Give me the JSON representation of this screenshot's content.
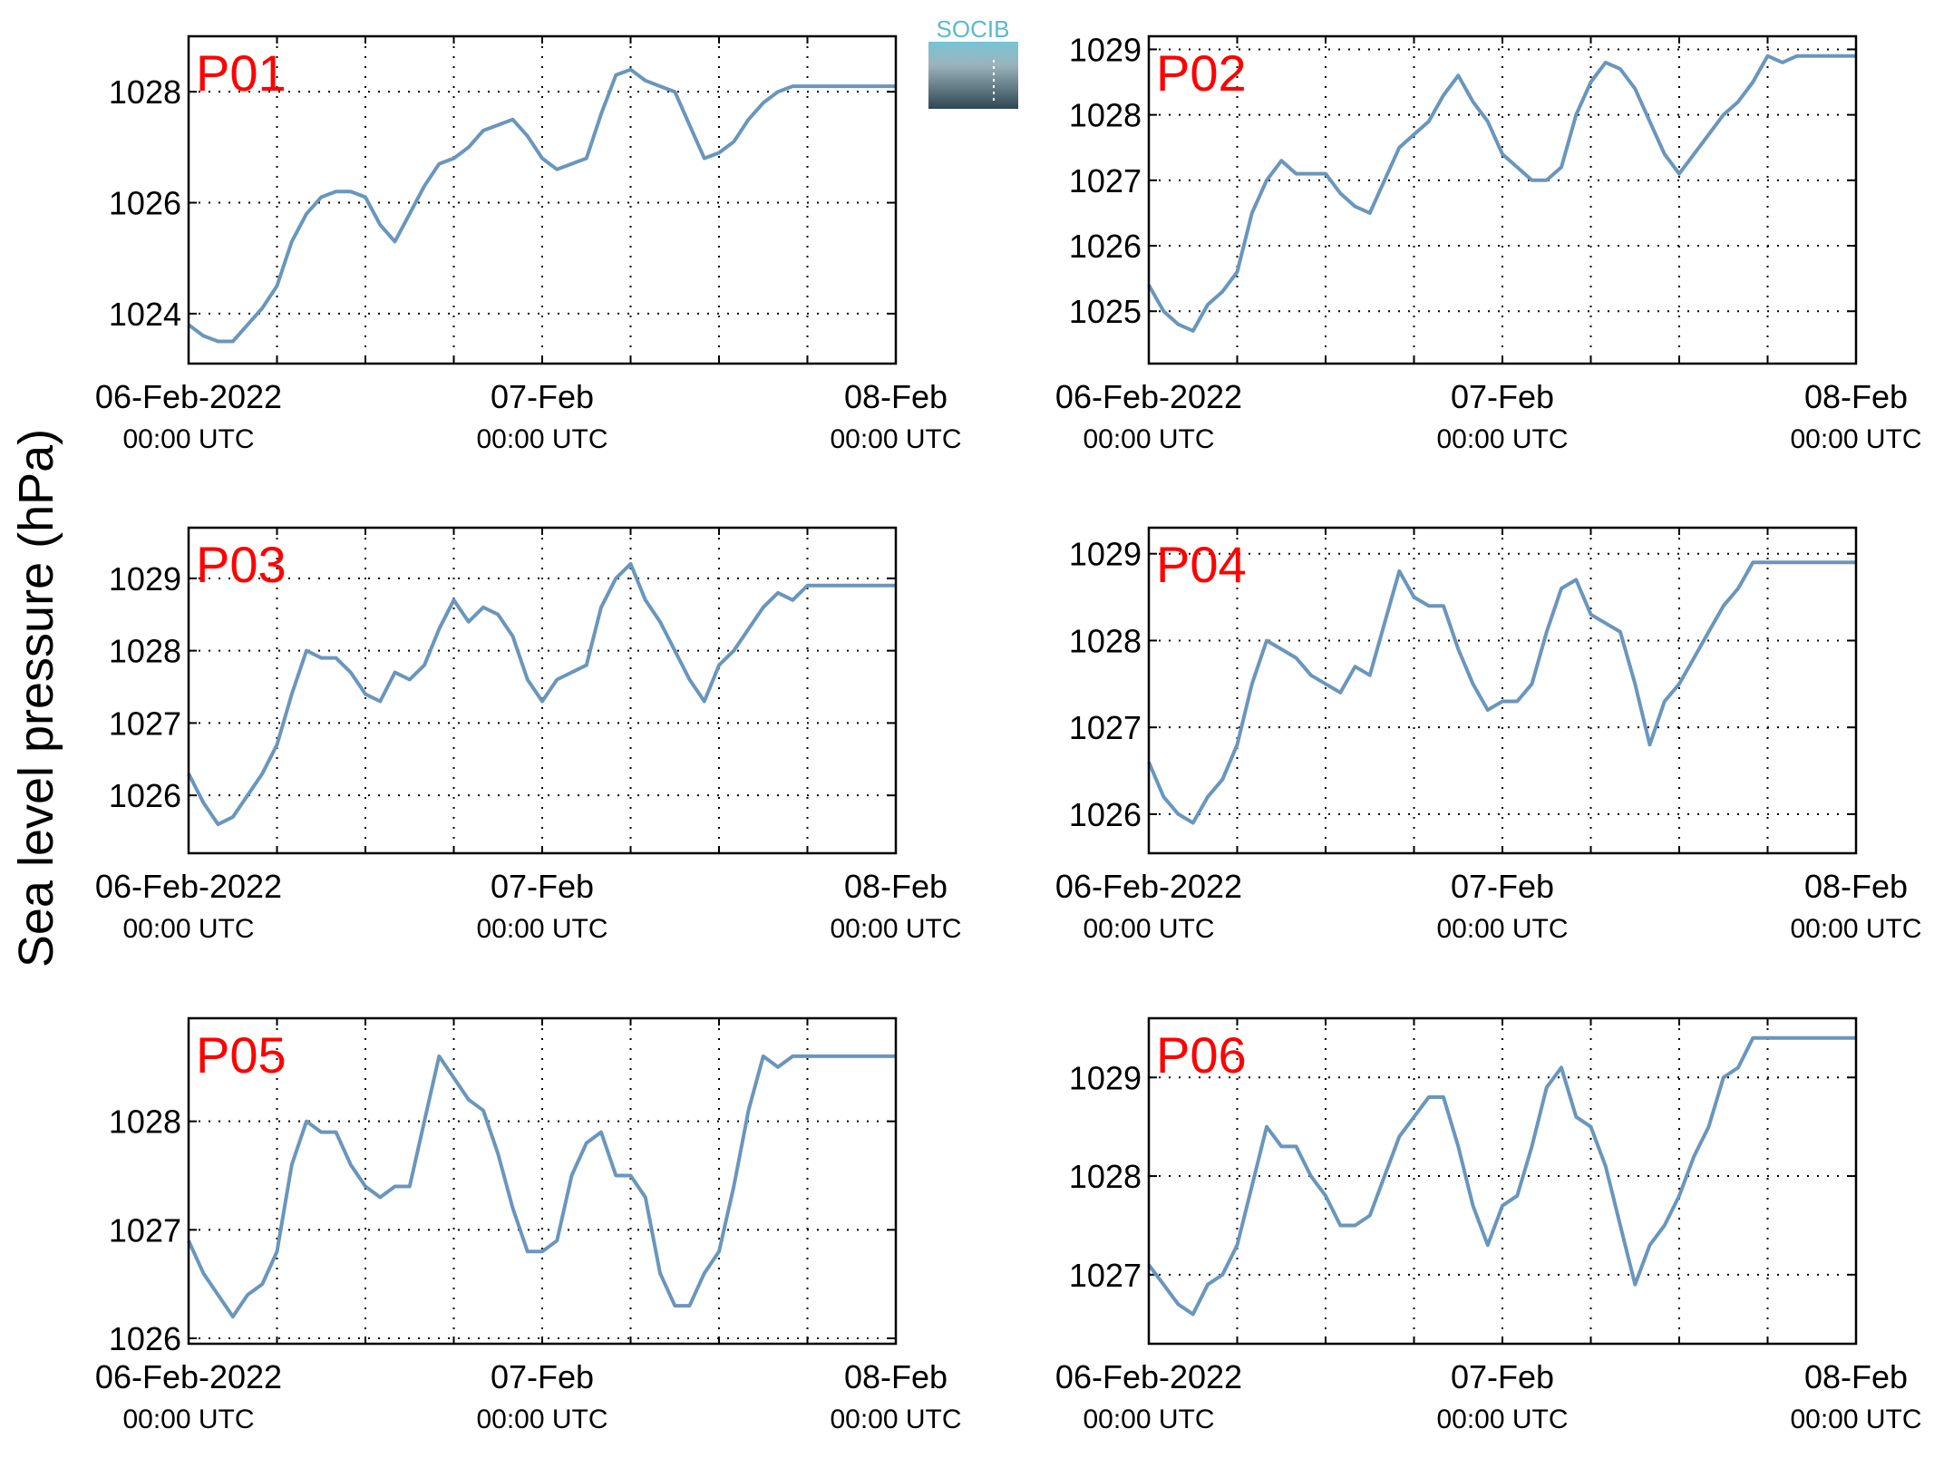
{
  "figure": {
    "ylabel": "Sea level pressure (hPa)",
    "logo_text": "SOCIB",
    "line_color": "#6a96bc",
    "tag_color": "#ff0000"
  },
  "chart_data": [
    {
      "type": "line",
      "panel": "P01",
      "x_ticks": [
        "06-Feb-2022",
        "07-Feb",
        "08-Feb"
      ],
      "x_tick_sub": [
        "00:00 UTC",
        "00:00 UTC",
        "00:00 UTC"
      ],
      "xlim": [
        0,
        48
      ],
      "ylim": [
        1023.1,
        1029.0
      ],
      "y_ticks": [
        1024,
        1026,
        1028
      ],
      "grid": true,
      "x": [
        0,
        1,
        2,
        3,
        4,
        5,
        6,
        7,
        8,
        9,
        10,
        11,
        12,
        13,
        14,
        15,
        16,
        17,
        18,
        19,
        20,
        21,
        22,
        23,
        24,
        25,
        26,
        27,
        28,
        29,
        30,
        31,
        32,
        33,
        34,
        35,
        36,
        37,
        38,
        39,
        40,
        41,
        42,
        43,
        44,
        45,
        46,
        47,
        48
      ],
      "y": [
        1023.8,
        1023.6,
        1023.5,
        1023.5,
        1023.8,
        1024.1,
        1024.5,
        1025.3,
        1025.8,
        1026.1,
        1026.2,
        1026.2,
        1026.1,
        1025.6,
        1025.3,
        1025.8,
        1026.3,
        1026.7,
        1026.8,
        1027.0,
        1027.3,
        1027.4,
        1027.5,
        1027.2,
        1026.8,
        1026.6,
        1026.7,
        1026.8,
        1027.6,
        1028.3,
        1028.4,
        1028.2,
        1028.1,
        1028.0,
        1027.4,
        1026.8,
        1026.9,
        1027.1,
        1027.5,
        1027.8,
        1028.0,
        1028.1,
        1028.1,
        1028.1,
        1028.1,
        1028.1,
        1028.1,
        1028.1,
        1028.1
      ]
    },
    {
      "type": "line",
      "panel": "P02",
      "x_ticks": [
        "06-Feb-2022",
        "07-Feb",
        "08-Feb"
      ],
      "x_tick_sub": [
        "00:00 UTC",
        "00:00 UTC",
        "00:00 UTC"
      ],
      "xlim": [
        0,
        48
      ],
      "ylim": [
        1024.2,
        1029.2
      ],
      "y_ticks": [
        1025,
        1026,
        1027,
        1028,
        1029
      ],
      "grid": true,
      "x": [
        0,
        1,
        2,
        3,
        4,
        5,
        6,
        7,
        8,
        9,
        10,
        11,
        12,
        13,
        14,
        15,
        16,
        17,
        18,
        19,
        20,
        21,
        22,
        23,
        24,
        25,
        26,
        27,
        28,
        29,
        30,
        31,
        32,
        33,
        34,
        35,
        36,
        37,
        38,
        39,
        40,
        41,
        42,
        43,
        44,
        45,
        46,
        47,
        48
      ],
      "y": [
        1025.4,
        1025.0,
        1024.8,
        1024.7,
        1025.1,
        1025.3,
        1025.6,
        1026.5,
        1027.0,
        1027.3,
        1027.1,
        1027.1,
        1027.1,
        1026.8,
        1026.6,
        1026.5,
        1027.0,
        1027.5,
        1027.7,
        1027.9,
        1028.3,
        1028.6,
        1028.2,
        1027.9,
        1027.4,
        1027.2,
        1027.0,
        1027.0,
        1027.2,
        1028.0,
        1028.5,
        1028.8,
        1028.7,
        1028.4,
        1027.9,
        1027.4,
        1027.1,
        1027.4,
        1027.7,
        1028.0,
        1028.2,
        1028.5,
        1028.9,
        1028.8,
        1028.9,
        1028.9,
        1028.9,
        1028.9,
        1028.9
      ]
    },
    {
      "type": "line",
      "panel": "P03",
      "x_ticks": [
        "06-Feb-2022",
        "07-Feb",
        "08-Feb"
      ],
      "x_tick_sub": [
        "00:00 UTC",
        "00:00 UTC",
        "00:00 UTC"
      ],
      "xlim": [
        0,
        48
      ],
      "ylim": [
        1025.2,
        1029.7
      ],
      "y_ticks": [
        1026,
        1027,
        1028,
        1029
      ],
      "grid": true,
      "x": [
        0,
        1,
        2,
        3,
        4,
        5,
        6,
        7,
        8,
        9,
        10,
        11,
        12,
        13,
        14,
        15,
        16,
        17,
        18,
        19,
        20,
        21,
        22,
        23,
        24,
        25,
        26,
        27,
        28,
        29,
        30,
        31,
        32,
        33,
        34,
        35,
        36,
        37,
        38,
        39,
        40,
        41,
        42,
        43,
        44,
        45,
        46,
        47,
        48
      ],
      "y": [
        1026.3,
        1025.9,
        1025.6,
        1025.7,
        1026.0,
        1026.3,
        1026.7,
        1027.4,
        1028.0,
        1027.9,
        1027.9,
        1027.7,
        1027.4,
        1027.3,
        1027.7,
        1027.6,
        1027.8,
        1028.3,
        1028.7,
        1028.4,
        1028.6,
        1028.5,
        1028.2,
        1027.6,
        1027.3,
        1027.6,
        1027.7,
        1027.8,
        1028.6,
        1029.0,
        1029.2,
        1028.7,
        1028.4,
        1028.0,
        1027.6,
        1027.3,
        1027.8,
        1028.0,
        1028.3,
        1028.6,
        1028.8,
        1028.7,
        1028.9,
        1028.9,
        1028.9,
        1028.9,
        1028.9,
        1028.9,
        1028.9
      ]
    },
    {
      "type": "line",
      "panel": "P04",
      "x_ticks": [
        "06-Feb-2022",
        "07-Feb",
        "08-Feb"
      ],
      "x_tick_sub": [
        "00:00 UTC",
        "00:00 UTC",
        "00:00 UTC"
      ],
      "xlim": [
        0,
        48
      ],
      "ylim": [
        1025.55,
        1029.3
      ],
      "y_ticks": [
        1026,
        1027,
        1028,
        1029
      ],
      "grid": true,
      "x": [
        0,
        1,
        2,
        3,
        4,
        5,
        6,
        7,
        8,
        9,
        10,
        11,
        12,
        13,
        14,
        15,
        16,
        17,
        18,
        19,
        20,
        21,
        22,
        23,
        24,
        25,
        26,
        27,
        28,
        29,
        30,
        31,
        32,
        33,
        34,
        35,
        36,
        37,
        38,
        39,
        40,
        41,
        42,
        43,
        44,
        45,
        46,
        47,
        48
      ],
      "y": [
        1026.6,
        1026.2,
        1026.0,
        1025.9,
        1026.2,
        1026.4,
        1026.8,
        1027.5,
        1028.0,
        1027.9,
        1027.8,
        1027.6,
        1027.5,
        1027.4,
        1027.7,
        1027.6,
        1028.2,
        1028.8,
        1028.5,
        1028.4,
        1028.4,
        1027.9,
        1027.5,
        1027.2,
        1027.3,
        1027.3,
        1027.5,
        1028.1,
        1028.6,
        1028.7,
        1028.3,
        1028.2,
        1028.1,
        1027.5,
        1026.8,
        1027.3,
        1027.5,
        1027.8,
        1028.1,
        1028.4,
        1028.6,
        1028.9,
        1028.9,
        1028.9,
        1028.9,
        1028.9,
        1028.9,
        1028.9,
        1028.9
      ]
    },
    {
      "type": "line",
      "panel": "P05",
      "x_ticks": [
        "06-Feb-2022",
        "07-Feb",
        "08-Feb"
      ],
      "x_tick_sub": [
        "00:00 UTC",
        "00:00 UTC",
        "00:00 UTC"
      ],
      "xlim": [
        0,
        48
      ],
      "ylim": [
        1025.95,
        1028.95
      ],
      "y_ticks": [
        1026,
        1027,
        1028
      ],
      "grid": true,
      "x": [
        0,
        1,
        2,
        3,
        4,
        5,
        6,
        7,
        8,
        9,
        10,
        11,
        12,
        13,
        14,
        15,
        16,
        17,
        18,
        19,
        20,
        21,
        22,
        23,
        24,
        25,
        26,
        27,
        28,
        29,
        30,
        31,
        32,
        33,
        34,
        35,
        36,
        37,
        38,
        39,
        40,
        41,
        42,
        43,
        44,
        45,
        46,
        47,
        48
      ],
      "y": [
        1026.9,
        1026.6,
        1026.4,
        1026.2,
        1026.4,
        1026.5,
        1026.8,
        1027.6,
        1028.0,
        1027.9,
        1027.9,
        1027.6,
        1027.4,
        1027.3,
        1027.4,
        1027.4,
        1028.0,
        1028.6,
        1028.4,
        1028.2,
        1028.1,
        1027.7,
        1027.2,
        1026.8,
        1026.8,
        1026.9,
        1027.5,
        1027.8,
        1027.9,
        1027.5,
        1027.5,
        1027.3,
        1026.6,
        1026.3,
        1026.3,
        1026.6,
        1026.8,
        1027.4,
        1028.1,
        1028.6,
        1028.5,
        1028.6,
        1028.6,
        1028.6,
        1028.6,
        1028.6,
        1028.6,
        1028.6,
        1028.6
      ]
    },
    {
      "type": "line",
      "panel": "P06",
      "x_ticks": [
        "06-Feb-2022",
        "07-Feb",
        "08-Feb"
      ],
      "x_tick_sub": [
        "00:00 UTC",
        "00:00 UTC",
        "00:00 UTC"
      ],
      "xlim": [
        0,
        48
      ],
      "ylim": [
        1026.3,
        1029.6
      ],
      "y_ticks": [
        1027,
        1028,
        1029
      ],
      "grid": true,
      "x": [
        0,
        1,
        2,
        3,
        4,
        5,
        6,
        7,
        8,
        9,
        10,
        11,
        12,
        13,
        14,
        15,
        16,
        17,
        18,
        19,
        20,
        21,
        22,
        23,
        24,
        25,
        26,
        27,
        28,
        29,
        30,
        31,
        32,
        33,
        34,
        35,
        36,
        37,
        38,
        39,
        40,
        41,
        42,
        43,
        44,
        45,
        46,
        47,
        48
      ],
      "y": [
        1027.1,
        1026.9,
        1026.7,
        1026.6,
        1026.9,
        1027.0,
        1027.3,
        1027.9,
        1028.5,
        1028.3,
        1028.3,
        1028.0,
        1027.8,
        1027.5,
        1027.5,
        1027.6,
        1028.0,
        1028.4,
        1028.6,
        1028.8,
        1028.8,
        1028.3,
        1027.7,
        1027.3,
        1027.7,
        1027.8,
        1028.3,
        1028.9,
        1029.1,
        1028.6,
        1028.5,
        1028.1,
        1027.5,
        1026.9,
        1027.3,
        1027.5,
        1027.8,
        1028.2,
        1028.5,
        1029.0,
        1029.1,
        1029.4,
        1029.4,
        1029.4,
        1029.4,
        1029.4,
        1029.4,
        1029.4,
        1029.4
      ]
    }
  ]
}
